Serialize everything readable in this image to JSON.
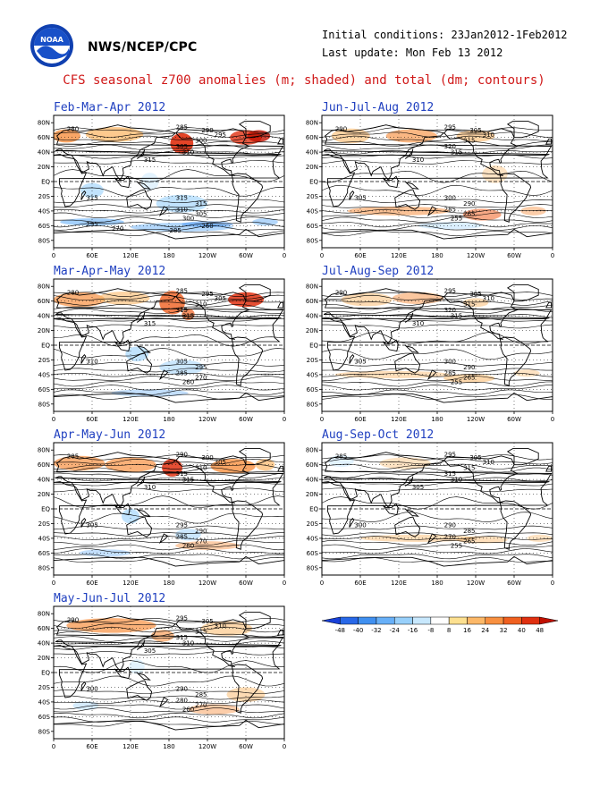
{
  "header": {
    "agency": "NWS/NCEP/CPC",
    "initial_conditions": "Initial conditions: 23Jan2012-1Feb2012",
    "last_update": "Last update: Mon Feb 13 2012",
    "title": "CFS seasonal z700 anomalies (m; shaded) and total (dm; contours)"
  },
  "axes": {
    "lat_labels": [
      "80N",
      "60N",
      "40N",
      "20N",
      "EQ",
      "20S",
      "40S",
      "60S",
      "80S"
    ],
    "lon_labels": [
      "0",
      "60E",
      "120E",
      "180",
      "120W",
      "60W",
      "0"
    ]
  },
  "panels": [
    {
      "title": "Feb-Mar-Apr 2012",
      "contour_labels": [
        "280",
        "285",
        "290",
        "295",
        "300",
        "305",
        "310",
        "315",
        "315",
        "315",
        "315",
        "310",
        "305",
        "300",
        "295",
        "285",
        "270",
        "260"
      ]
    },
    {
      "title": "Mar-Apr-May 2012",
      "contour_labels": [
        "280",
        "285",
        "295",
        "305",
        "310",
        "315",
        "315",
        "315",
        "310",
        "305",
        "295",
        "285",
        "270",
        "260"
      ]
    },
    {
      "title": "Apr-May-Jun 2012",
      "contour_labels": [
        "285",
        "290",
        "300",
        "305",
        "310",
        "315",
        "315",
        "310",
        "305",
        "295",
        "290",
        "285",
        "270",
        "260"
      ]
    },
    {
      "title": "May-Jun-Jul 2012",
      "contour_labels": [
        "290",
        "295",
        "305",
        "310",
        "315",
        "315",
        "310",
        "305",
        "300",
        "290",
        "285",
        "280",
        "270",
        "260"
      ]
    },
    {
      "title": "Jun-Jul-Aug 2012",
      "contour_labels": [
        "290",
        "295",
        "305",
        "310",
        "315",
        "320",
        "315",
        "310",
        "305",
        "300",
        "290",
        "285",
        "265",
        "255"
      ]
    },
    {
      "title": "Jul-Aug-Sep 2012",
      "contour_labels": [
        "290",
        "295",
        "305",
        "310",
        "315",
        "320",
        "315",
        "310",
        "305",
        "300",
        "290",
        "285",
        "265",
        "255"
      ]
    },
    {
      "title": "Aug-Sep-Oct 2012",
      "contour_labels": [
        "285",
        "295",
        "305",
        "310",
        "315",
        "315",
        "310",
        "305",
        "300",
        "290",
        "285",
        "270",
        "265",
        "255"
      ]
    }
  ],
  "colorbar": {
    "ticks": [
      "-48",
      "-40",
      "-32",
      "-24",
      "-16",
      "-8",
      "8",
      "16",
      "24",
      "32",
      "40",
      "48"
    ],
    "colors": [
      "#1840d8",
      "#2868e8",
      "#4090f0",
      "#68b0f8",
      "#98d0fb",
      "#c8e8fd",
      "#ffffff",
      "#fde090",
      "#fcb868",
      "#f89040",
      "#f06020",
      "#e03010",
      "#c01000"
    ]
  }
}
